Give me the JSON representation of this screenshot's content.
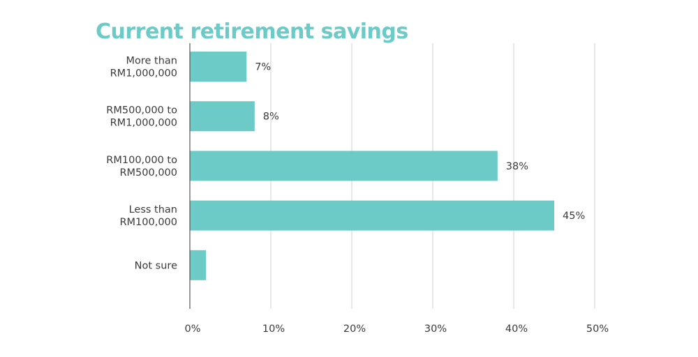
{
  "chart_data": {
    "type": "bar",
    "orientation": "horizontal",
    "title": "Current retirement savings",
    "categories": [
      [
        "More than",
        "RM1,000,000"
      ],
      [
        "RM500,000 to",
        "RM1,000,000"
      ],
      [
        "RM100,000 to",
        "RM500,000"
      ],
      [
        "Less than",
        "RM100,000"
      ],
      [
        "Not sure"
      ]
    ],
    "values": [
      7,
      8,
      38,
      45,
      2
    ],
    "data_labels": [
      "7%",
      "8%",
      "38%",
      "45%",
      ""
    ],
    "xlim": [
      0,
      50
    ],
    "x_ticks": [
      0,
      10,
      20,
      30,
      40,
      50
    ],
    "x_tick_labels": [
      "0%",
      "10%",
      "20%",
      "30%",
      "40%",
      "50%"
    ],
    "grid": "vertical",
    "legend": "none"
  },
  "colors": {
    "bar": "#6ccac7",
    "title": "#6ccac7",
    "grid": "#d9d9d9",
    "axis": "#555555",
    "text": "#3a3a3a"
  }
}
